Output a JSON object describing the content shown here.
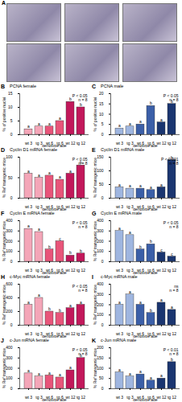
{
  "panel_a": {
    "label": "A"
  },
  "chart_data": [
    {
      "panel": "B",
      "type": "bar",
      "title": "PCNA female",
      "ylabel": "% of positive nuclei",
      "xlabel": "genotype age",
      "categories": [
        "wt 3",
        "tg 3",
        "wt 6",
        "tg 6",
        "wt 12",
        "tg 12"
      ],
      "values": [
        2,
        3,
        3,
        5,
        12,
        10
      ],
      "colors": [
        "#f4a6b8",
        "#f4a6b8",
        "#e8557a",
        "#e8557a",
        "#c2185b",
        "#c2185b"
      ],
      "letters": [
        "a",
        "a",
        "a",
        "a",
        "b",
        "b"
      ],
      "annotations": [
        "P < 0.05",
        "n = 8"
      ],
      "ylim": [
        0,
        15
      ],
      "yticks": [
        0,
        5,
        10,
        15
      ]
    },
    {
      "panel": "C",
      "type": "bar",
      "title": "PCNA male",
      "ylabel": "% of positive nuclei",
      "xlabel": "genotype age",
      "categories": [
        "wt 3",
        "tg 3",
        "wt 6",
        "tg 6",
        "wt 12",
        "tg 12"
      ],
      "values": [
        3,
        4,
        5,
        14,
        6,
        15
      ],
      "colors": [
        "#9fb6e0",
        "#9fb6e0",
        "#3b5fa8",
        "#3b5fa8",
        "#1a3570",
        "#1a3570"
      ],
      "letters": [
        "a",
        "a",
        "a",
        "b",
        "a",
        "b"
      ],
      "annotations": [
        "P < 0.05",
        "n = 8"
      ],
      "ylim": [
        0,
        20
      ],
      "yticks": [
        0,
        5,
        10,
        15,
        20
      ]
    },
    {
      "panel": "D",
      "type": "bar",
      "title": "Cyclin D1 mRNA female",
      "ylabel": "% Ref transgenic mice",
      "xlabel": "genotype age",
      "categories": [
        "wt 3",
        "tg 3",
        "wt 6",
        "tg 6",
        "wt 12",
        "tg 12"
      ],
      "values": [
        60,
        50,
        55,
        45,
        60,
        80
      ],
      "colors": [
        "#f4a6b8",
        "#f4a6b8",
        "#e8557a",
        "#e8557a",
        "#c2185b",
        "#c2185b"
      ],
      "letters": [
        "a",
        "a",
        "a",
        "a",
        "a",
        "b"
      ],
      "annotations": [
        "P < 0.05",
        "n = 8"
      ],
      "ylim": [
        0,
        100
      ],
      "yticks": [
        0,
        50,
        100
      ]
    },
    {
      "panel": "E",
      "type": "bar",
      "title": "Cyclin D1 mRNA male",
      "ylabel": "% Ref transgenic mice",
      "xlabel": "genotype age",
      "categories": [
        "wt 3",
        "tg 3",
        "wt 6",
        "tg 6",
        "wt 12",
        "tg 12"
      ],
      "values": [
        40,
        35,
        35,
        30,
        40,
        140
      ],
      "colors": [
        "#9fb6e0",
        "#9fb6e0",
        "#3b5fa8",
        "#3b5fa8",
        "#1a3570",
        "#1a3570"
      ],
      "letters": [
        "a",
        "a",
        "a",
        "a",
        "a",
        "b"
      ],
      "annotations": [
        "P < 0.001",
        "n = 8"
      ],
      "ylim": [
        0,
        150
      ],
      "yticks": [
        0,
        50,
        100,
        150
      ]
    },
    {
      "panel": "F",
      "type": "bar",
      "title": "Cyclin E mRNA female",
      "ylabel": "% Ref transgenic mice",
      "xlabel": "genotype age",
      "categories": [
        "wt 3",
        "tg 3",
        "wt 6",
        "tg 6",
        "wt 12",
        "tg 12"
      ],
      "values": [
        320,
        290,
        120,
        200,
        60,
        80
      ],
      "colors": [
        "#f4a6b8",
        "#f4a6b8",
        "#e8557a",
        "#e8557a",
        "#c2185b",
        "#c2185b"
      ],
      "letters": [
        "a",
        "a",
        "b",
        "c",
        "b",
        "b"
      ],
      "annotations": [
        "P < 0.05",
        "n = 8"
      ],
      "ylim": [
        0,
        400
      ],
      "yticks": [
        0,
        100,
        200,
        300,
        400
      ]
    },
    {
      "panel": "G",
      "type": "bar",
      "title": "Cyclin E mRNA male",
      "ylabel": "% Ref transgenic mice",
      "xlabel": "genotype age",
      "categories": [
        "wt 3",
        "tg 3",
        "wt 6",
        "tg 6",
        "wt 12",
        "tg 12"
      ],
      "values": [
        300,
        260,
        120,
        170,
        90,
        50
      ],
      "colors": [
        "#9fb6e0",
        "#9fb6e0",
        "#3b5fa8",
        "#3b5fa8",
        "#1a3570",
        "#1a3570"
      ],
      "letters": [
        "a",
        "a",
        "b",
        "b",
        "c",
        "c"
      ],
      "annotations": [
        "P < 0.05",
        "n = 8"
      ],
      "ylim": [
        0,
        400
      ],
      "yticks": [
        0,
        100,
        200,
        300,
        400
      ]
    },
    {
      "panel": "H",
      "type": "bar",
      "title": "c-Myc mRNA female",
      "ylabel": "% Ref transgenic mice",
      "xlabel": "genotype age",
      "categories": [
        "wt 3",
        "tg 3",
        "wt 6",
        "tg 6",
        "wt 12",
        "tg 12"
      ],
      "values": [
        300,
        400,
        200,
        180,
        250,
        300
      ],
      "colors": [
        "#f4a6b8",
        "#f4a6b8",
        "#e8557a",
        "#e8557a",
        "#c2185b",
        "#c2185b"
      ],
      "letters": [
        "a",
        "a",
        "b",
        "b",
        "a",
        "a"
      ],
      "annotations": [
        "P < 0.05",
        "n = 8"
      ],
      "ylim": [
        0,
        600
      ],
      "yticks": [
        0,
        200,
        400,
        600
      ]
    },
    {
      "panel": "I",
      "type": "bar",
      "title": "c-Myc mRNA male",
      "ylabel": "% Ref transgenic mice",
      "xlabel": "genotype age",
      "categories": [
        "wt 3",
        "tg 3",
        "wt 6",
        "tg 6",
        "wt 12",
        "tg 12"
      ],
      "values": [
        200,
        300,
        200,
        120,
        220,
        150
      ],
      "colors": [
        "#9fb6e0",
        "#9fb6e0",
        "#3b5fa8",
        "#3b5fa8",
        "#1a3570",
        "#1a3570"
      ],
      "letters": [
        "a",
        "a",
        "a",
        "b",
        "a",
        "a"
      ],
      "annotations": [
        "ns",
        "n = 8"
      ],
      "ylim": [
        0,
        400
      ],
      "yticks": [
        0,
        100,
        200,
        300,
        400
      ]
    },
    {
      "panel": "J",
      "type": "bar",
      "title": "c-Jun mRNA female",
      "ylabel": "% Ref transgenic mice",
      "xlabel": "genotype age",
      "categories": [
        "wt 3",
        "tg 3",
        "wt 6",
        "tg 6",
        "wt 12",
        "tg 12"
      ],
      "values": [
        150,
        120,
        130,
        110,
        180,
        300
      ],
      "colors": [
        "#f4a6b8",
        "#f4a6b8",
        "#e8557a",
        "#e8557a",
        "#c2185b",
        "#c2185b"
      ],
      "letters": [
        "a",
        "a",
        "a",
        "a",
        "a",
        "b"
      ],
      "annotations": [
        "P < 0.05",
        "n = 8"
      ],
      "ylim": [
        0,
        400
      ],
      "yticks": [
        0,
        100,
        200,
        300,
        400
      ]
    },
    {
      "panel": "K",
      "type": "bar",
      "title": "c-Jun mRNA male",
      "ylabel": "% Ref transgenic mice",
      "xlabel": "genotype age",
      "categories": [
        "wt 3",
        "tg 3",
        "wt 6",
        "tg 6",
        "wt 12",
        "tg 12"
      ],
      "values": [
        80,
        60,
        70,
        40,
        50,
        130
      ],
      "colors": [
        "#9fb6e0",
        "#9fb6e0",
        "#3b5fa8",
        "#3b5fa8",
        "#1a3570",
        "#1a3570"
      ],
      "letters": [
        "a",
        "a",
        "a",
        "a",
        "a",
        "b"
      ],
      "annotations": [
        "P < 0.01",
        "n = 8"
      ],
      "ylim": [
        0,
        200
      ],
      "yticks": [
        0,
        50,
        100,
        150,
        200
      ]
    }
  ]
}
